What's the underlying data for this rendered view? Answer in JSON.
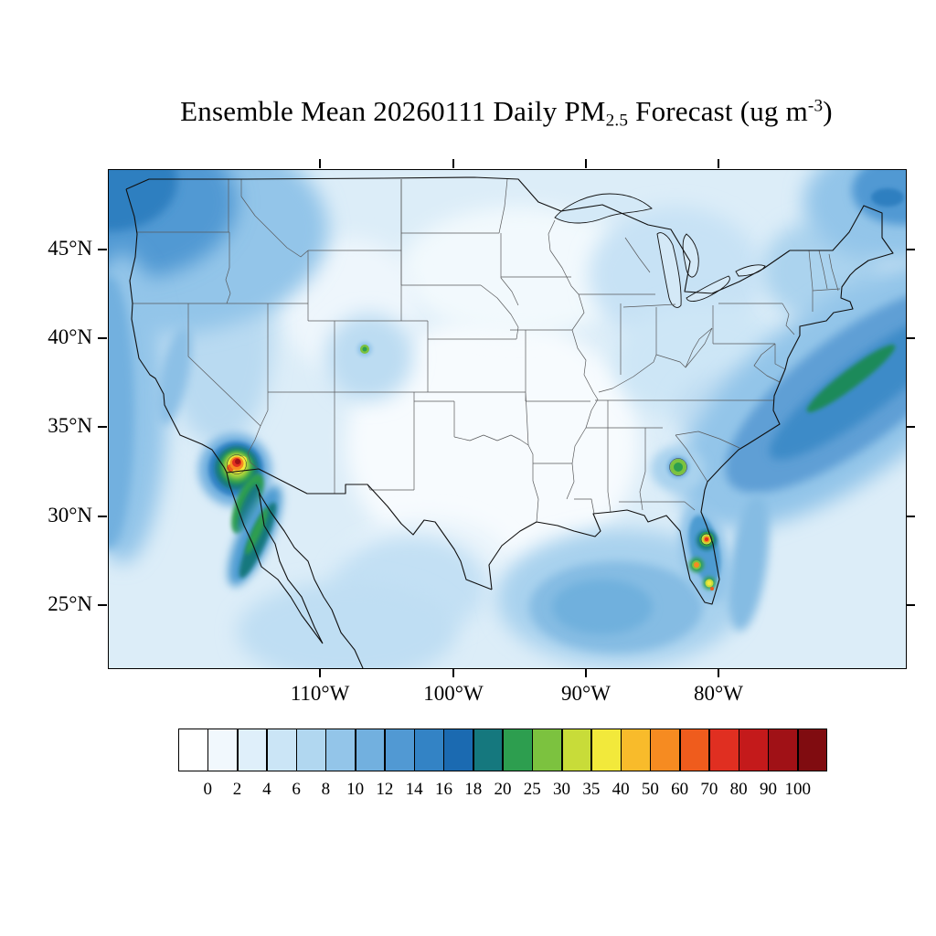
{
  "title": {
    "prefix": "Ensemble Mean 20260111 Daily PM",
    "subscript": "2.5",
    "middle": " Forecast (ug m",
    "superscript": "-3",
    "suffix": ")"
  },
  "axes": {
    "lat_labels": [
      "45°N",
      "40°N",
      "35°N",
      "30°N",
      "25°N"
    ],
    "lon_labels": [
      "110°W",
      "100°W",
      "90°W",
      "80°W"
    ]
  },
  "colorbar": {
    "orientation": "horizontal",
    "levels": [
      0,
      2,
      4,
      6,
      8,
      10,
      12,
      14,
      16,
      18,
      20,
      25,
      30,
      35,
      40,
      50,
      60,
      70,
      80,
      90,
      100
    ],
    "colors": [
      "#ffffff",
      "#f1f8fd",
      "#dfeffa",
      "#cbe5f6",
      "#b1d7f0",
      "#93c5e9",
      "#72b0df",
      "#5199d3",
      "#3383c5",
      "#1b6ab1",
      "#15787e",
      "#2d9e4f",
      "#7cc23f",
      "#c8dc39",
      "#f2e93b",
      "#f8bb2b",
      "#f68b21",
      "#ef5c1d",
      "#e02f21",
      "#c41a1b",
      "#a01116",
      "#800c10"
    ]
  },
  "chart_data": {
    "type": "heatmap",
    "title": "Ensemble Mean 20260111 Daily PM2.5 Forecast (ug m-3)",
    "variable": "Daily PM2.5",
    "statistic": "Ensemble Mean",
    "date": "20260111",
    "units": "ug m-3",
    "region": "Continental United States with surrounding ocean and northern Mexico",
    "projection_extent": {
      "lon_ticks": [
        -110,
        -100,
        -90,
        -80
      ],
      "lat_ticks": [
        45,
        40,
        35,
        30,
        25
      ]
    },
    "contour_levels": [
      0,
      2,
      4,
      6,
      8,
      10,
      12,
      14,
      16,
      18,
      20,
      25,
      30,
      35,
      40,
      50,
      60,
      70,
      80,
      90,
      100
    ],
    "legend_position": "bottom",
    "grid": "off",
    "features": [
      {
        "location": "Southern California / Imperial Valley area",
        "approx_value": 100,
        "description": "intense red/dark-red hotspot ringed by orange, yellow and green contours"
      },
      {
        "location": "Baja California coastal band",
        "approx_value": 16,
        "description": "dark blue-teal diagonal band extending southeast from the hotspot"
      },
      {
        "location": "Central Florida",
        "approx_value": 60,
        "description": "several small orange/red spots with green and yellow surrounds"
      },
      {
        "location": "Central Georgia",
        "approx_value": 22,
        "description": "small isolated green spot"
      },
      {
        "location": "Colorado Rockies",
        "approx_value": 20,
        "description": "tiny green speck"
      },
      {
        "location": "Pacific Northwest offshore (top-left)",
        "approx_value": 14,
        "description": "dark blue maximum wedge"
      },
      {
        "location": "California offshore band",
        "approx_value": 10,
        "description": "medium blue coastal strip"
      },
      {
        "location": "Western Atlantic offshore (right edge)",
        "approx_value": 14,
        "description": "broad dark blue diagonal band with small green sliver"
      },
      {
        "location": "Northeast corner ocean",
        "approx_value": 12,
        "description": "medium-dark blue patch"
      },
      {
        "location": "Gulf of Mexico",
        "approx_value": 8,
        "description": "medium blue area"
      },
      {
        "location": "Central Great Plains / Texas interior",
        "approx_value": 1,
        "description": "near-white minimum"
      },
      {
        "location": "Upper Midwest interior",
        "approx_value": 2,
        "description": "very light blue minimum"
      }
    ]
  }
}
